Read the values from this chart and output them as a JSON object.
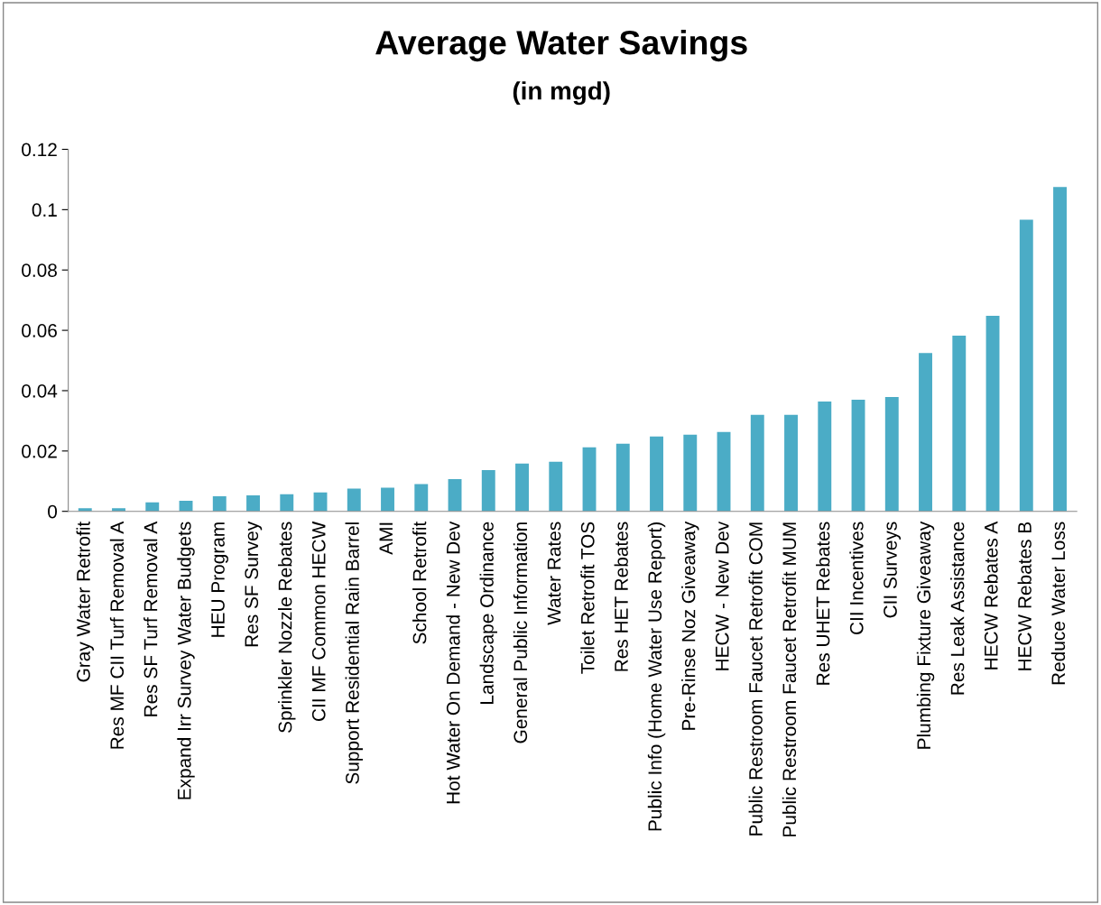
{
  "chart_data": {
    "type": "bar",
    "title": "Average Water Savings",
    "subtitle": "(in mgd)",
    "categories": [
      "Gray Water Retrofit",
      "Res MF CII Turf Removal A",
      "Res SF Turf Removal A",
      "Expand Irr Survey Water Budgets",
      "HEU Program",
      "Res SF Survey",
      "Sprinkler Nozzle Rebates",
      "CII MF Common HECW",
      "Support Residential Rain Barrel",
      "AMI",
      "School Retrofit",
      "Hot Water On Demand - New Dev",
      "Landscape Ordinance",
      "General Public Information",
      "Water Rates",
      "Toilet Retrofit TOS",
      "Res HET Rebates",
      "Public Info (Home Water Use Report)",
      "Pre-Rinse Noz Giveaway",
      "HECW - New Dev",
      "Public Restroom Faucet Retrofit COM",
      "Public Restroom Faucet Retrofit MUM",
      "Res UHET Rebates",
      "CII Incentives",
      "CII Surveys",
      "Plumbing Fixture Giveaway",
      "Res Leak Assistance",
      "HECW Rebates A",
      "HECW Rebates B",
      "Reduce Water Loss"
    ],
    "values": [
      0.001,
      0.001,
      0.003,
      0.0035,
      0.005,
      0.0053,
      0.0057,
      0.0063,
      0.0075,
      0.0078,
      0.009,
      0.0107,
      0.0137,
      0.0158,
      0.0164,
      0.0212,
      0.0224,
      0.0248,
      0.0254,
      0.0263,
      0.032,
      0.032,
      0.0364,
      0.037,
      0.0379,
      0.0525,
      0.0582,
      0.0648,
      0.0967,
      0.1075
    ],
    "color": "#4bacc6",
    "ylim": [
      0,
      0.12
    ],
    "yticks": [
      0,
      0.02,
      0.04,
      0.06,
      0.08,
      {
        "value": 0.1,
        "label": "0.1"
      },
      0.12
    ],
    "grid": false,
    "legend": false
  }
}
